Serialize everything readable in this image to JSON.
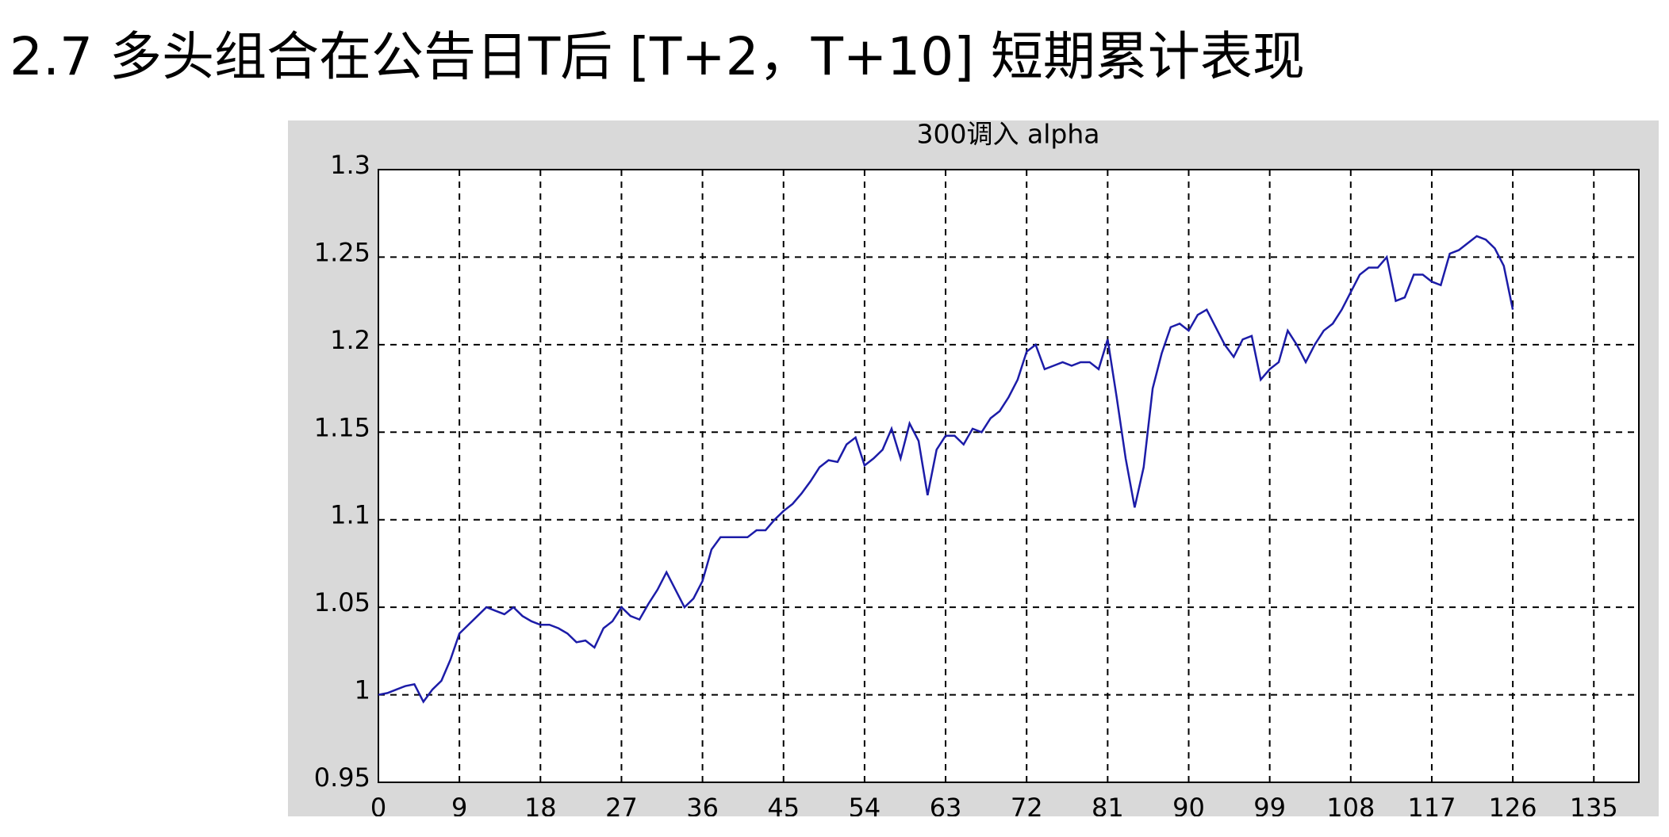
{
  "heading": "2.7 多头组合在公告日T后 [T+2，T+10] 短期累计表现",
  "chart_data": {
    "type": "line",
    "title": "300调入 alpha",
    "x": [
      0,
      1,
      2,
      3,
      4,
      5,
      6,
      7,
      8,
      9,
      10,
      11,
      12,
      13,
      14,
      15,
      16,
      17,
      18,
      19,
      20,
      21,
      22,
      23,
      24,
      25,
      26,
      27,
      28,
      29,
      30,
      31,
      32,
      33,
      34,
      35,
      36,
      37,
      38,
      39,
      40,
      41,
      42,
      43,
      44,
      45,
      46,
      47,
      48,
      49,
      50,
      51,
      52,
      53,
      54,
      55,
      56,
      57,
      58,
      59,
      60,
      61,
      62,
      63,
      64,
      65,
      66,
      67,
      68,
      69,
      70,
      71,
      72,
      73,
      74,
      75,
      76,
      77,
      78,
      79,
      80,
      81,
      82,
      83,
      84,
      85,
      86,
      87,
      88,
      89,
      90,
      91,
      92,
      93,
      94,
      95,
      96,
      97,
      98,
      99,
      100,
      101,
      102,
      103,
      104,
      105,
      106,
      107,
      108,
      109,
      110,
      111,
      112,
      113,
      114,
      115,
      116,
      117,
      118,
      119,
      120,
      121,
      122,
      123,
      124,
      125,
      126
    ],
    "series": [
      {
        "name": "alpha",
        "color": "#1c1ca8",
        "values": [
          1.0,
          1.001,
          1.003,
          1.005,
          1.006,
          0.996,
          1.003,
          1.008,
          1.02,
          1.035,
          1.04,
          1.045,
          1.05,
          1.048,
          1.046,
          1.05,
          1.045,
          1.042,
          1.04,
          1.04,
          1.038,
          1.035,
          1.03,
          1.031,
          1.027,
          1.038,
          1.042,
          1.05,
          1.045,
          1.043,
          1.052,
          1.06,
          1.07,
          1.06,
          1.05,
          1.055,
          1.065,
          1.083,
          1.09,
          1.09,
          1.09,
          1.09,
          1.094,
          1.094,
          1.1,
          1.105,
          1.109,
          1.115,
          1.122,
          1.13,
          1.134,
          1.133,
          1.143,
          1.147,
          1.131,
          1.135,
          1.14,
          1.152,
          1.135,
          1.155,
          1.145,
          1.114,
          1.14,
          1.148,
          1.148,
          1.143,
          1.152,
          1.15,
          1.158,
          1.162,
          1.17,
          1.18,
          1.196,
          1.2,
          1.186,
          1.188,
          1.19,
          1.188,
          1.19,
          1.19,
          1.186,
          1.203,
          1.17,
          1.135,
          1.107,
          1.13,
          1.175,
          1.195,
          1.21,
          1.212,
          1.208,
          1.217,
          1.22,
          1.21,
          1.2,
          1.193,
          1.203,
          1.205,
          1.18,
          1.186,
          1.19,
          1.208,
          1.2,
          1.19,
          1.2,
          1.208,
          1.212,
          1.22,
          1.23,
          1.24,
          1.244,
          1.244,
          1.25,
          1.225,
          1.227,
          1.24,
          1.24,
          1.236,
          1.234,
          1.252,
          1.254,
          1.258,
          1.262,
          1.26,
          1.255,
          1.245,
          1.22
        ]
      }
    ],
    "xlim": [
      0,
      140
    ],
    "xticks": [
      0,
      9,
      18,
      27,
      36,
      45,
      54,
      63,
      72,
      81,
      90,
      99,
      108,
      117,
      126,
      135
    ],
    "ylim": [
      0.95,
      1.3
    ],
    "yticks": [
      0.95,
      1,
      1.05,
      1.1,
      1.15,
      1.2,
      1.25,
      1.3
    ],
    "grid": true
  }
}
